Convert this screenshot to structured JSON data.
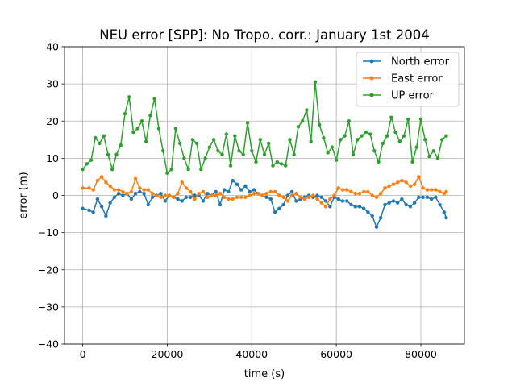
{
  "chart_data": {
    "type": "line",
    "title": "NEU error [SPP]: No Tropo. corr.: January 1st 2004",
    "xlabel": "time (s)",
    "ylabel": "error (m)",
    "xlim": [
      -4300,
      90300
    ],
    "ylim": [
      -40,
      40
    ],
    "xticks": [
      0,
      20000,
      40000,
      60000,
      80000
    ],
    "xtick_labels": [
      "0",
      "20000",
      "40000",
      "60000",
      "80000"
    ],
    "yticks": [
      -40,
      -30,
      -20,
      -10,
      0,
      10,
      20,
      30,
      40
    ],
    "ytick_labels": [
      "−40",
      "−30",
      "−20",
      "−10",
      "0",
      "10",
      "20",
      "30",
      "40"
    ],
    "grid": true,
    "legend_location": "upper right",
    "marker": "point",
    "series": [
      {
        "name": "North error",
        "color": "#1f77b4",
        "x": [
          0,
          1500,
          2500,
          3500,
          4500,
          5500,
          6500,
          7500,
          8500,
          9500,
          10500,
          11500,
          12500,
          13500,
          14500,
          15500,
          16500,
          17500,
          18500,
          19500,
          20500,
          21500,
          22500,
          23500,
          24500,
          25500,
          26500,
          27500,
          28500,
          29500,
          30500,
          31500,
          32500,
          33500,
          34500,
          35500,
          36500,
          37500,
          38500,
          39500,
          40500,
          41500,
          42500,
          43500,
          44500,
          45500,
          46500,
          47500,
          48500,
          49500,
          50500,
          51500,
          52500,
          53500,
          54500,
          55500,
          56500,
          57500,
          58500,
          59500,
          60500,
          61500,
          62500,
          63500,
          64500,
          65500,
          66500,
          67500,
          68500,
          69500,
          70500,
          71500,
          72500,
          73500,
          74500,
          75500,
          76500,
          77500,
          78500,
          79500,
          80500,
          81500,
          82500,
          83500,
          84500,
          85500,
          86000
        ],
        "y": [
          -3.5,
          -4,
          -4.5,
          -1,
          -3,
          -5.5,
          -2,
          -0.5,
          0.5,
          0,
          0.5,
          -1,
          0.5,
          1,
          0.5,
          -2.5,
          -0.5,
          0,
          0.5,
          -1.5,
          0,
          -0.5,
          -1,
          -1.5,
          -0.5,
          -0.5,
          0,
          0,
          -1.5,
          0.5,
          0,
          1,
          -2.5,
          1.5,
          1,
          4,
          3,
          1.5,
          2.5,
          1,
          1.5,
          0.5,
          0,
          -0.5,
          -1,
          -4.5,
          -3.5,
          -2.5,
          0,
          1,
          -1.5,
          -1,
          -0.5,
          0,
          -0.5,
          0,
          -0.5,
          -1.5,
          -3,
          -0.5,
          -1,
          -1.5,
          -1.5,
          -2.5,
          -3,
          -3,
          -3.5,
          -4.5,
          -5.5,
          -8.5,
          -6,
          -2.5,
          -2,
          -1.5,
          -2,
          -1,
          -2.5,
          -3,
          -2,
          -0.5,
          -0.5,
          -0.5,
          -1,
          -0.5,
          -2.5,
          -4.5,
          -6
        ]
      },
      {
        "name": "East error",
        "color": "#ff7f0e",
        "x": [
          0,
          1500,
          2500,
          3500,
          4500,
          5500,
          6500,
          7500,
          8500,
          9500,
          10500,
          11500,
          12500,
          13500,
          14500,
          15500,
          16500,
          17500,
          18500,
          19500,
          20500,
          21500,
          22500,
          23500,
          24500,
          25500,
          26500,
          27500,
          28500,
          29500,
          30500,
          31500,
          32500,
          33500,
          34500,
          35500,
          36500,
          37500,
          38500,
          39500,
          40500,
          41500,
          42500,
          43500,
          44500,
          45500,
          46500,
          47500,
          48500,
          49500,
          50500,
          51500,
          52500,
          53500,
          54500,
          55500,
          56500,
          57500,
          58500,
          59500,
          60500,
          61500,
          62500,
          63500,
          64500,
          65500,
          66500,
          67500,
          68500,
          69500,
          70500,
          71500,
          72500,
          73500,
          74500,
          75500,
          76500,
          77500,
          78500,
          79500,
          80500,
          81500,
          82500,
          83500,
          84500,
          85500,
          86000
        ],
        "y": [
          2,
          2,
          1.5,
          4,
          5,
          3.5,
          2.5,
          1.5,
          1.5,
          1,
          0.5,
          1,
          4.5,
          2,
          1.5,
          1.5,
          0.5,
          0,
          -0.5,
          0,
          0,
          -0.5,
          0.5,
          3.5,
          2,
          1,
          -1,
          0.5,
          1,
          -0.5,
          0,
          0,
          0.5,
          -0.5,
          -1,
          -1,
          -0.5,
          -0.5,
          -0.5,
          0,
          0.5,
          0.5,
          0,
          0.5,
          1,
          1,
          0,
          -0.5,
          -1.5,
          0,
          0.5,
          -0.5,
          -1,
          -0.5,
          0,
          -1,
          -2,
          -3,
          -1,
          0,
          2,
          1.5,
          1.5,
          1,
          0.5,
          0.5,
          1,
          1,
          0,
          -0.5,
          0.5,
          2,
          2.5,
          3,
          3.5,
          4,
          3.5,
          2.5,
          3,
          5,
          2,
          1.5,
          1.5,
          1.5,
          1,
          0.5,
          1
        ]
      },
      {
        "name": "UP error",
        "color": "#2ca02c",
        "x": [
          0,
          1000,
          2000,
          3000,
          4000,
          5000,
          6000,
          7000,
          8000,
          9000,
          10000,
          11000,
          12000,
          13000,
          14000,
          15000,
          16000,
          17000,
          18000,
          19000,
          20000,
          21000,
          22000,
          23000,
          24000,
          25000,
          26000,
          27000,
          28000,
          29000,
          30000,
          31000,
          32000,
          33000,
          34000,
          35000,
          36000,
          37000,
          38000,
          39000,
          40000,
          41000,
          42000,
          43000,
          44000,
          45000,
          46000,
          47000,
          48000,
          49000,
          50000,
          51000,
          52000,
          53000,
          54000,
          55000,
          56000,
          57000,
          58000,
          59000,
          60000,
          61000,
          62000,
          63000,
          64000,
          65000,
          66000,
          67000,
          68000,
          69000,
          70000,
          71000,
          72000,
          73000,
          74000,
          75000,
          76000,
          77000,
          78000,
          79000,
          80000,
          81000,
          82000,
          83000,
          84000,
          85000,
          86000
        ],
        "y": [
          7,
          8.5,
          9.5,
          15.5,
          14,
          16,
          11,
          7,
          11,
          13.5,
          22,
          26.5,
          17,
          18,
          20,
          14.5,
          21.5,
          26,
          18,
          12,
          6,
          7,
          18,
          14,
          10,
          7,
          15,
          14,
          7,
          10,
          13,
          15,
          12,
          11,
          16.5,
          8,
          16,
          12,
          11,
          19.5,
          12,
          9,
          15,
          11,
          14,
          8,
          9,
          8.5,
          8,
          15,
          11,
          18.5,
          20,
          23,
          14.5,
          30.5,
          19,
          15.5,
          11.5,
          13,
          9.5,
          15,
          16,
          20,
          11,
          15,
          16,
          17,
          16.5,
          12,
          9,
          14,
          16,
          21,
          17,
          14.5,
          16,
          20.5,
          9,
          13,
          20.5,
          15,
          10.5,
          12,
          10,
          15,
          16
        ]
      }
    ]
  }
}
